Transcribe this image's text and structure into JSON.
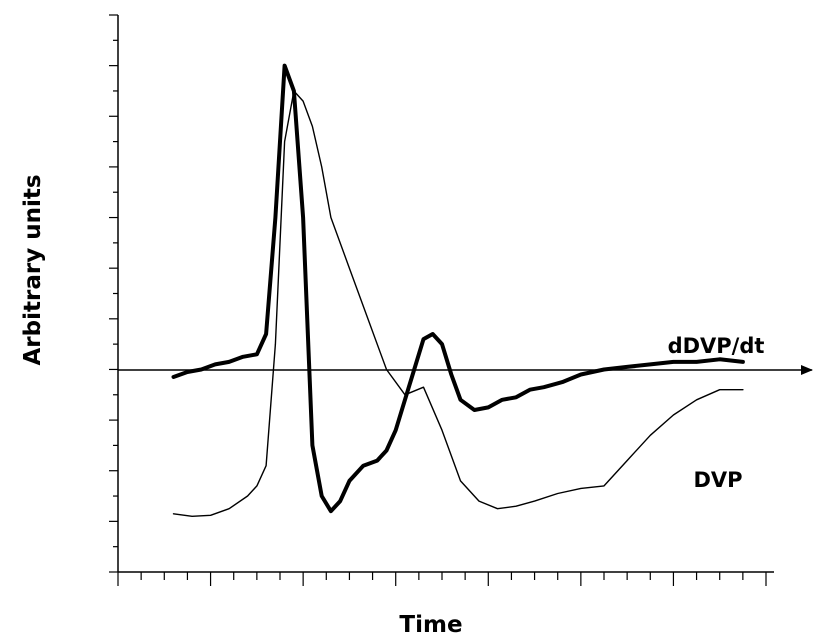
{
  "chart_data": {
    "type": "line",
    "xlabel": "Time",
    "ylabel": "Arbitrary units",
    "xlim": [
      0,
      14
    ],
    "ylim": [
      -4,
      7
    ],
    "x_ticks": [
      0,
      0.5,
      1,
      1.5,
      2,
      2.5,
      3,
      3.5,
      4,
      4.5,
      5,
      5.5,
      6,
      6.5,
      7,
      7.5,
      8,
      8.5,
      9,
      9.5,
      10,
      10.5,
      11,
      11.5,
      12,
      12.5,
      13,
      13.5,
      14
    ],
    "y_ticks": [
      -4,
      -3.5,
      -3,
      -2.5,
      -2,
      -1.5,
      -1,
      -0.5,
      0,
      0.5,
      1,
      1.5,
      2,
      2.5,
      3,
      3.5,
      4,
      4.5,
      5,
      5.5,
      6,
      6.5,
      7
    ],
    "grid": false,
    "legend": "inline labels",
    "series": [
      {
        "name": "dDVP/dt",
        "line": "thick",
        "color": "#000000",
        "x": [
          1.2,
          1.5,
          1.8,
          2.1,
          2.4,
          2.7,
          3.0,
          3.2,
          3.4,
          3.6,
          3.8,
          4.0,
          4.2,
          4.4,
          4.6,
          4.8,
          5.0,
          5.3,
          5.6,
          5.8,
          6.0,
          6.3,
          6.6,
          6.8,
          7.0,
          7.2,
          7.4,
          7.7,
          8.0,
          8.3,
          8.6,
          8.9,
          9.2,
          9.6,
          10.0,
          10.5,
          11.0,
          11.5,
          12.0,
          12.5,
          13.0,
          13.5
        ],
        "y": [
          -0.15,
          -0.05,
          0.0,
          0.1,
          0.15,
          0.25,
          0.3,
          0.7,
          3.0,
          6.0,
          5.5,
          3.0,
          -1.5,
          -2.5,
          -2.8,
          -2.6,
          -2.2,
          -1.9,
          -1.8,
          -1.6,
          -1.2,
          -0.3,
          0.6,
          0.7,
          0.5,
          -0.1,
          -0.6,
          -0.8,
          -0.75,
          -0.6,
          -0.55,
          -0.4,
          -0.35,
          -0.25,
          -0.1,
          0.0,
          0.05,
          0.1,
          0.15,
          0.15,
          0.2,
          0.15
        ]
      },
      {
        "name": "DVP",
        "line": "thin",
        "color": "#000000",
        "x": [
          1.2,
          1.6,
          2.0,
          2.4,
          2.8,
          3.0,
          3.2,
          3.4,
          3.6,
          3.8,
          4.0,
          4.2,
          4.4,
          4.6,
          5.0,
          5.4,
          5.8,
          6.2,
          6.6,
          7.0,
          7.4,
          7.8,
          8.2,
          8.6,
          9.0,
          9.5,
          10.0,
          10.5,
          11.0,
          11.5,
          12.0,
          12.5,
          13.0,
          13.5
        ],
        "y": [
          -2.85,
          -2.9,
          -2.88,
          -2.75,
          -2.5,
          -2.3,
          -1.9,
          0.5,
          4.5,
          5.5,
          5.3,
          4.8,
          4.0,
          3.0,
          2.0,
          1.0,
          0.0,
          -0.5,
          -0.35,
          -1.2,
          -2.2,
          -2.6,
          -2.75,
          -2.7,
          -2.6,
          -2.45,
          -2.35,
          -2.3,
          -1.8,
          -1.3,
          -0.9,
          -0.6,
          -0.4,
          -0.4
        ]
      }
    ]
  }
}
